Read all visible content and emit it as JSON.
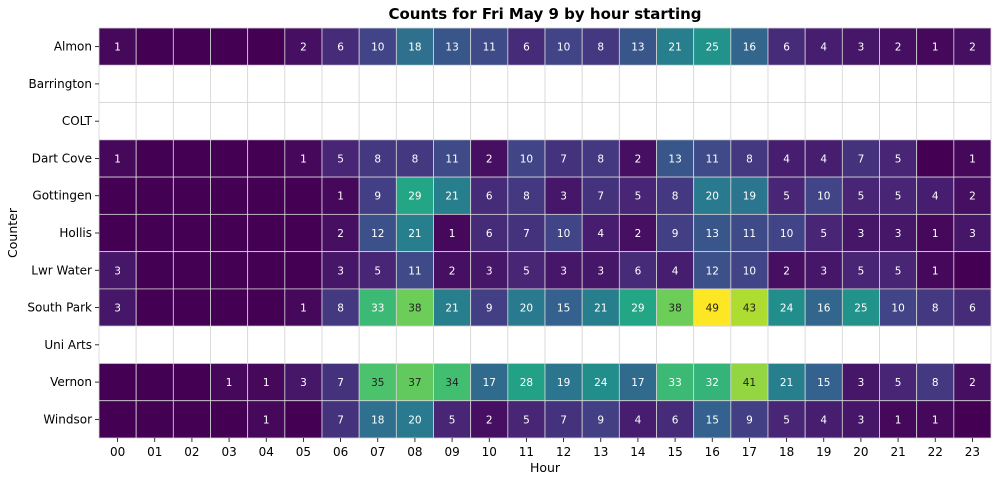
{
  "chart_data": {
    "type": "heatmap",
    "title": "Counts for Fri May 9 by hour starting",
    "xlabel": "Hour",
    "ylabel": "Counter",
    "colormap": "viridis",
    "vmin": 0,
    "vmax": 49,
    "empty_cell_color": "#ffffff",
    "hours": [
      "00",
      "01",
      "02",
      "03",
      "04",
      "05",
      "06",
      "07",
      "08",
      "09",
      "10",
      "11",
      "12",
      "13",
      "14",
      "15",
      "16",
      "17",
      "18",
      "19",
      "20",
      "21",
      "22",
      "23"
    ],
    "counters": [
      "Almon",
      "Barrington",
      "COLT",
      "Dart Cove",
      "Gottingen",
      "Hollis",
      "Lwr Water",
      "South Park",
      "Uni Arts",
      "Vernon",
      "Windsor"
    ],
    "values": [
      [
        1,
        null,
        null,
        null,
        null,
        2,
        6,
        10,
        18,
        13,
        11,
        6,
        10,
        8,
        13,
        21,
        25,
        16,
        6,
        4,
        3,
        2,
        1,
        2
      ],
      [
        null,
        null,
        null,
        null,
        null,
        null,
        null,
        null,
        null,
        null,
        null,
        null,
        null,
        null,
        null,
        null,
        null,
        null,
        null,
        null,
        null,
        null,
        null,
        null
      ],
      [
        null,
        null,
        null,
        null,
        null,
        null,
        null,
        null,
        null,
        null,
        null,
        null,
        null,
        null,
        null,
        null,
        null,
        null,
        null,
        null,
        null,
        null,
        null,
        null
      ],
      [
        1,
        null,
        null,
        null,
        null,
        1,
        5,
        8,
        8,
        11,
        2,
        10,
        7,
        8,
        2,
        13,
        11,
        8,
        4,
        4,
        7,
        5,
        null,
        1
      ],
      [
        null,
        null,
        null,
        null,
        null,
        null,
        1,
        9,
        29,
        21,
        6,
        8,
        3,
        7,
        5,
        8,
        20,
        19,
        5,
        10,
        5,
        5,
        4,
        2
      ],
      [
        null,
        null,
        null,
        null,
        null,
        null,
        2,
        12,
        21,
        1,
        6,
        7,
        10,
        4,
        2,
        9,
        13,
        11,
        10,
        5,
        3,
        3,
        1,
        3
      ],
      [
        3,
        null,
        null,
        null,
        null,
        null,
        3,
        5,
        11,
        2,
        3,
        5,
        3,
        3,
        6,
        4,
        12,
        10,
        2,
        3,
        5,
        5,
        1,
        null
      ],
      [
        3,
        null,
        null,
        null,
        null,
        1,
        8,
        33,
        38,
        21,
        9,
        20,
        15,
        21,
        29,
        38,
        49,
        43,
        24,
        16,
        25,
        10,
        8,
        6
      ],
      [
        null,
        null,
        null,
        null,
        null,
        null,
        null,
        null,
        null,
        null,
        null,
        null,
        null,
        null,
        null,
        null,
        null,
        null,
        null,
        null,
        null,
        null,
        null,
        null
      ],
      [
        null,
        null,
        null,
        1,
        1,
        3,
        7,
        35,
        37,
        34,
        17,
        28,
        19,
        24,
        17,
        33,
        32,
        41,
        21,
        15,
        3,
        5,
        8,
        2
      ],
      [
        null,
        null,
        null,
        null,
        1,
        null,
        7,
        18,
        20,
        5,
        2,
        5,
        7,
        9,
        4,
        6,
        15,
        9,
        5,
        4,
        3,
        1,
        1,
        null
      ]
    ]
  }
}
